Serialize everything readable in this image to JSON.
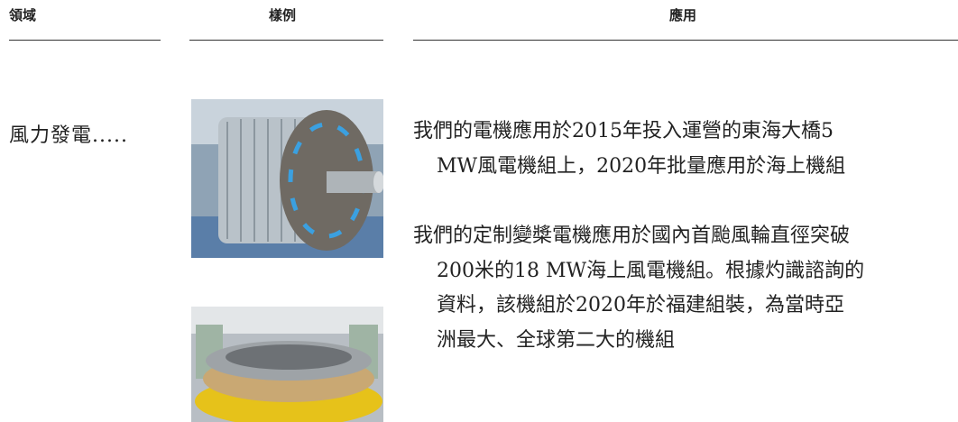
{
  "table": {
    "headers": [
      "領域",
      "樣例",
      "應用"
    ],
    "rows": [
      {
        "domain": "風力發電.....",
        "application": [
          [
            "我們的電機應用於2015年投入運營的東海大橋5",
            "MW風電機組上，2020年批量應用於海上機組"
          ],
          [
            "我們的定制變槳電機應用於國內首颱風輪直徑突破",
            "200米的18 MW海上風電機組。根據灼識諮詢的",
            "資料，該機組於2020年於福建組裝，為當時亞",
            "洲最大、全球第二大的機組"
          ]
        ]
      }
    ]
  }
}
